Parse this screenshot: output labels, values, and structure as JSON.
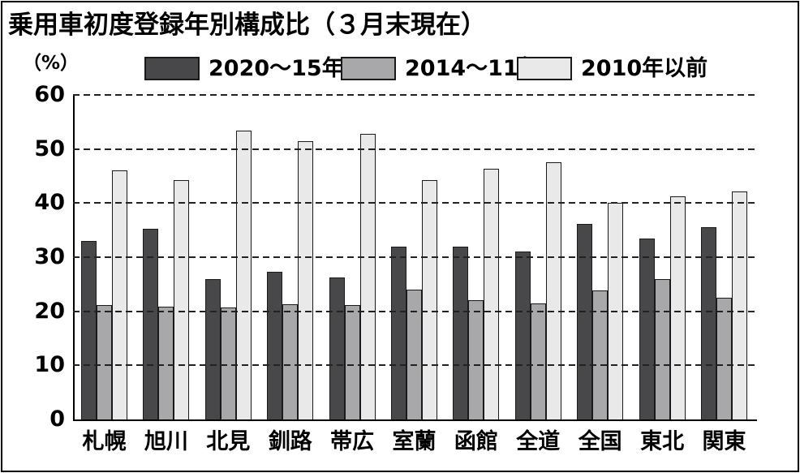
{
  "title": "乗用車初度登録年別構成比（３月末現在）",
  "y_axis": {
    "unit_label": "（%）",
    "tick_labels": [
      "60",
      "50",
      "40",
      "30",
      "20",
      "10",
      "0"
    ],
    "ticks": [
      60,
      50,
      40,
      30,
      20,
      10,
      0
    ]
  },
  "legend": [
    {
      "label": "2020〜15年",
      "color": "#48484b"
    },
    {
      "label": "2014〜11年",
      "color": "#a8a8ab"
    },
    {
      "label": "2010年以前",
      "color": "#e9e9ea"
    }
  ],
  "colors": {
    "bar_border": "#1a1a1a",
    "axis": "#000000",
    "gridline": "#222222",
    "background": "#ffffff"
  },
  "chart_data": {
    "type": "bar",
    "title": "乗用車初度登録年別構成比（３月末現在）",
    "xlabel": "",
    "ylabel": "（%）",
    "ylim": [
      0,
      60
    ],
    "y_tick_step": 10,
    "grid": "horizontal-dashed",
    "legend_position": "top",
    "categories": [
      "札幌",
      "旭川",
      "北見",
      "釧路",
      "帯広",
      "室蘭",
      "函館",
      "全道",
      "全国",
      "東北",
      "関東"
    ],
    "series": [
      {
        "name": "2020〜15年",
        "color": "#48484b",
        "values": [
          33.0,
          35.2,
          26.0,
          27.3,
          26.3,
          32.0,
          31.9,
          31.0,
          36.2,
          33.4,
          35.6
        ]
      },
      {
        "name": "2014〜11年",
        "color": "#a8a8ab",
        "values": [
          21.1,
          20.8,
          20.7,
          21.3,
          21.1,
          24.0,
          22.0,
          21.4,
          23.9,
          25.9,
          22.5
        ]
      },
      {
        "name": "2010年以前",
        "color": "#e9e9ea",
        "values": [
          46.0,
          44.3,
          53.4,
          51.5,
          52.8,
          44.3,
          46.3,
          47.6,
          40.0,
          41.2,
          42.2
        ]
      }
    ]
  }
}
